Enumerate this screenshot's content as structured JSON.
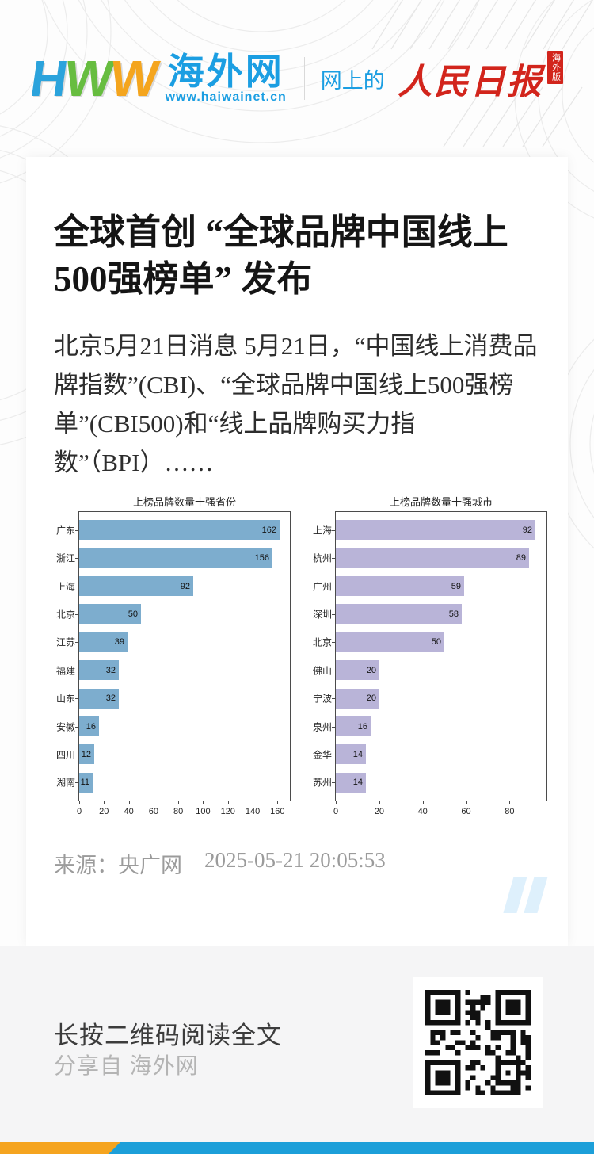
{
  "header": {
    "logo_h": "H",
    "logo_w1": "W",
    "logo_w2": "W",
    "site_name": "海外网",
    "site_url": "www.haiwainet.cn",
    "tagline": "网上的",
    "brand": "人民日报",
    "brand_badge": "海外版"
  },
  "article": {
    "title": "全球首创 “全球品牌中国线上500强榜单” 发布",
    "body": "北京5月21日消息 5月21日，“中国线上消费品牌指数”(CBI)、“全球品牌中国线上500强榜单”(CBI500)和“线上品牌购买力指数”（BPI）……",
    "source_label": "来源：央广网",
    "timestamp": "2025-05-21 20:05:53"
  },
  "chart_data": [
    {
      "type": "bar",
      "orientation": "horizontal",
      "title": "上榜品牌数量十强省份",
      "categories": [
        "广东",
        "浙江",
        "上海",
        "北京",
        "江苏",
        "福建",
        "山东",
        "安徽",
        "四川",
        "湖南"
      ],
      "values": [
        162,
        156,
        92,
        50,
        39,
        32,
        32,
        16,
        12,
        11
      ],
      "xticks": [
        0,
        20,
        40,
        60,
        80,
        100,
        120,
        140,
        160
      ],
      "xlim": [
        0,
        170
      ],
      "bar_color": "#7dadce",
      "value_labels": true,
      "grid": false,
      "legend": false
    },
    {
      "type": "bar",
      "orientation": "horizontal",
      "title": "上榜品牌数量十强城市",
      "categories": [
        "上海",
        "杭州",
        "广州",
        "深圳",
        "北京",
        "佛山",
        "宁波",
        "泉州",
        "金华",
        "苏州"
      ],
      "values": [
        92,
        89,
        59,
        58,
        50,
        20,
        20,
        16,
        14,
        14
      ],
      "xticks": [
        0,
        20,
        40,
        60,
        80
      ],
      "xlim": [
        0,
        97
      ],
      "bar_color": "#b9b4d8",
      "value_labels": true,
      "grid": false,
      "legend": false
    }
  ],
  "footer": {
    "cta": "长按二维码阅读全文",
    "share_from": "分享自 海外网",
    "qr_alt": "qr-code"
  },
  "colors": {
    "header_blue": "#1b9ee2",
    "brand_red": "#d2251c",
    "bar_blue": "#7dadce",
    "bar_purple": "#b9b4d8",
    "bottom_orange": "#f5a41f",
    "bottom_blue": "#1c9fd9",
    "quote_blue": "#def0fc"
  }
}
